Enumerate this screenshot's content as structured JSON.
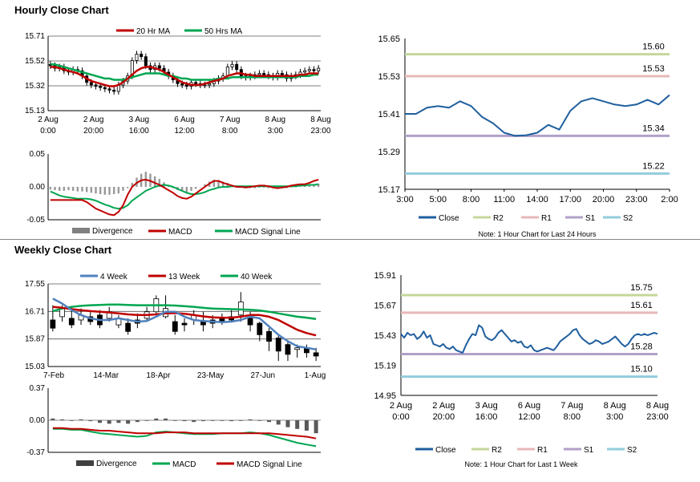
{
  "hourly": {
    "title": "Hourly Close Chart",
    "note": "Note: 1 Hour Chart for Last 24 Hours"
  },
  "weekly": {
    "title": "Weekly Close Chart",
    "note": "Note: 1 Hour Chart for Last 1 Week"
  },
  "colors": {
    "red": "#c00000",
    "green": "#00a651",
    "blue": "#4f81bd",
    "close": "#1f5f9f",
    "r2": "#c4d79b",
    "r1": "#e6b8b7",
    "s1": "#b1a0c7",
    "s2": "#92cddc",
    "gray": "#808080",
    "dark": "#404040"
  },
  "chart_data": [
    {
      "id": "hourly_price",
      "type": "candlestick",
      "legend": [
        "20 Hr MA",
        "50 Hrs MA"
      ],
      "ylim": [
        15.13,
        15.71
      ],
      "yticks": [
        "15.71",
        "15.52",
        "15.32",
        "15.13"
      ],
      "xticks": [
        [
          "2 Aug",
          "0:00"
        ],
        [
          "2 Aug",
          "20:00"
        ],
        [
          "3 Aug",
          "16:00"
        ],
        [
          "6 Aug",
          "12:00"
        ],
        [
          "7 Aug",
          "8:00"
        ],
        [
          "8 Aug",
          "3:00"
        ],
        [
          "8 Aug",
          "23:00"
        ]
      ],
      "closes": [
        15.48,
        15.46,
        15.47,
        15.44,
        15.43,
        15.45,
        15.44,
        15.4,
        15.35,
        15.33,
        15.32,
        15.31,
        15.3,
        15.29,
        15.28,
        15.33,
        15.36,
        15.4,
        15.52,
        15.57,
        15.55,
        15.48,
        15.45,
        15.48,
        15.46,
        15.43,
        15.4,
        15.37,
        15.34,
        15.33,
        15.32,
        15.35,
        15.34,
        15.33,
        15.33,
        15.34,
        15.36,
        15.38,
        15.4,
        15.47,
        15.49,
        15.45,
        15.4,
        15.39,
        15.4,
        15.41,
        15.42,
        15.41,
        15.4,
        15.39,
        15.42,
        15.41,
        15.38,
        15.4,
        15.41,
        15.43,
        15.44,
        15.45,
        15.44,
        15.46
      ],
      "ma20": [
        15.47,
        15.47,
        15.46,
        15.45,
        15.44,
        15.43,
        15.42,
        15.4,
        15.38,
        15.36,
        15.35,
        15.34,
        15.33,
        15.32,
        15.32,
        15.33,
        15.35,
        15.38,
        15.41,
        15.44,
        15.46,
        15.47,
        15.47,
        15.46,
        15.45,
        15.43,
        15.41,
        15.39,
        15.37,
        15.35,
        15.34,
        15.33,
        15.33,
        15.33,
        15.34,
        15.35,
        15.36,
        15.37,
        15.38,
        15.4,
        15.41,
        15.42,
        15.42,
        15.41,
        15.41,
        15.4,
        15.4,
        15.4,
        15.4,
        15.4,
        15.4,
        15.4,
        15.4,
        15.4,
        15.4,
        15.41,
        15.41,
        15.42,
        15.42,
        15.42
      ],
      "ma50": [
        15.49,
        15.49,
        15.48,
        15.47,
        15.46,
        15.45,
        15.44,
        15.43,
        15.42,
        15.41,
        15.4,
        15.39,
        15.38,
        15.38,
        15.37,
        15.37,
        15.37,
        15.38,
        15.39,
        15.4,
        15.41,
        15.42,
        15.42,
        15.42,
        15.42,
        15.41,
        15.4,
        15.4,
        15.39,
        15.38,
        15.38,
        15.37,
        15.37,
        15.37,
        15.37,
        15.37,
        15.37,
        15.38,
        15.38,
        15.38,
        15.39,
        15.39,
        15.39,
        15.39,
        15.39,
        15.39,
        15.39,
        15.39,
        15.39,
        15.39,
        15.39,
        15.39,
        15.39,
        15.39,
        15.39,
        15.4,
        15.4,
        15.4,
        15.41,
        15.41
      ]
    },
    {
      "id": "hourly_macd",
      "type": "bar+line",
      "legend": [
        "Divergence",
        "MACD",
        "MACD Signal Line"
      ],
      "ylim": [
        -0.05,
        0.05
      ],
      "yticks": [
        "0.05",
        "0.00",
        "-0.05"
      ],
      "macd": [
        -0.02,
        -0.02,
        -0.02,
        -0.02,
        -0.02,
        -0.02,
        -0.02,
        -0.02,
        -0.023,
        -0.028,
        -0.033,
        -0.036,
        -0.039,
        -0.042,
        -0.043,
        -0.038,
        -0.028,
        -0.012,
        0.0,
        0.006,
        0.01,
        0.011,
        0.009,
        0.006,
        0.003,
        -0.001,
        -0.005,
        -0.009,
        -0.014,
        -0.017,
        -0.018,
        -0.015,
        -0.01,
        -0.005,
        0.0,
        0.005,
        0.009,
        0.009,
        0.006,
        0.004,
        0.002,
        0.0,
        0.0,
        -0.001,
        0.0,
        0.001,
        0.002,
        0.002,
        0.001,
        -0.001,
        -0.002,
        -0.001,
        0.0,
        0.002,
        0.003,
        0.004,
        0.004,
        0.006,
        0.009,
        0.011
      ],
      "signal": [
        -0.007,
        -0.01,
        -0.013,
        -0.015,
        -0.016,
        -0.017,
        -0.018,
        -0.018,
        -0.018,
        -0.019,
        -0.021,
        -0.024,
        -0.027,
        -0.029,
        -0.032,
        -0.033,
        -0.032,
        -0.028,
        -0.021,
        -0.016,
        -0.011,
        -0.006,
        -0.003,
        0.0,
        0.002,
        0.003,
        0.002,
        0.0,
        -0.003,
        -0.006,
        -0.009,
        -0.011,
        -0.011,
        -0.01,
        -0.008,
        -0.005,
        -0.003,
        -0.001,
        0.0,
        0.0,
        0.001,
        0.001,
        0.001,
        0.001,
        0.001,
        0.001,
        0.001,
        0.001,
        0.001,
        0.001,
        0.001,
        0.001,
        0.001,
        0.001,
        0.001,
        0.002,
        0.002,
        0.003,
        0.003,
        0.004
      ],
      "divergence": [
        -0.004,
        -0.005,
        -0.006,
        -0.006,
        -0.005,
        -0.006,
        -0.007,
        -0.007,
        -0.008,
        -0.009,
        -0.01,
        -0.011,
        -0.012,
        -0.012,
        -0.011,
        -0.01,
        -0.006,
        -0.002,
        0.006,
        0.014,
        0.02,
        0.023,
        0.02,
        0.016,
        0.012,
        0.007,
        0.003,
        -0.002,
        -0.005,
        -0.007,
        -0.008,
        -0.006,
        -0.003,
        0.0,
        0.004,
        0.008,
        0.011,
        0.01,
        0.008,
        0.006,
        0.003,
        0.001,
        0.0,
        -0.002,
        -0.002,
        -0.002,
        -0.001,
        -0.001,
        -0.002,
        -0.002,
        -0.003,
        -0.002,
        -0.002,
        -0.001,
        0.0,
        0.001,
        0.002,
        0.003,
        0.004,
        0.005
      ]
    },
    {
      "id": "hourly_close_24h",
      "type": "line",
      "ylim": [
        15.17,
        15.65
      ],
      "yticks": [
        "15.65",
        "15.53",
        "15.41",
        "15.29",
        "15.17"
      ],
      "xticks": [
        "3:00",
        "5:00",
        "8:00",
        "11:00",
        "14:00",
        "17:00",
        "20:00",
        "23:00",
        "2:00"
      ],
      "close": [
        15.41,
        15.41,
        15.43,
        15.435,
        15.43,
        15.45,
        15.435,
        15.4,
        15.38,
        15.35,
        15.34,
        15.342,
        15.35,
        15.375,
        15.36,
        15.42,
        15.45,
        15.46,
        15.45,
        15.44,
        15.435,
        15.44,
        15.455,
        15.44,
        15.47
      ],
      "levels": [
        {
          "name": "R2",
          "value": 15.6,
          "label": "15.60"
        },
        {
          "name": "R1",
          "value": 15.53,
          "label": "15.53"
        },
        {
          "name": "S1",
          "value": 15.34,
          "label": "15.34"
        },
        {
          "name": "S2",
          "value": 15.22,
          "label": "15.22"
        }
      ],
      "legend": [
        "Close",
        "R2",
        "R1",
        "S1",
        "S2"
      ]
    },
    {
      "id": "weekly_price",
      "type": "candlestick",
      "legend": [
        "4 Week",
        "13 Week",
        "40 Week"
      ],
      "ylim": [
        15.03,
        17.55
      ],
      "yticks": [
        "17.55",
        "16.71",
        "15.87",
        "15.03"
      ],
      "xticks": [
        "7-Feb",
        "14-Mar",
        "18-Apr",
        "23-May",
        "27-Jun",
        "1-Aug"
      ],
      "opens": [
        16.45,
        16.55,
        16.5,
        16.45,
        16.55,
        16.6,
        16.5,
        16.3,
        16.35,
        16.45,
        16.5,
        16.7,
        16.55,
        16.4,
        16.35,
        16.45,
        16.4,
        16.45,
        16.5,
        16.55,
        16.6,
        16.5,
        16.35,
        16.1,
        15.9,
        15.7,
        15.55,
        15.6,
        15.45
      ],
      "closes": [
        16.2,
        16.8,
        16.3,
        16.6,
        16.4,
        16.3,
        16.7,
        16.5,
        16.1,
        16.35,
        16.7,
        17.1,
        16.8,
        16.1,
        16.3,
        16.6,
        16.3,
        16.35,
        16.4,
        16.45,
        17.0,
        16.3,
        16.0,
        15.8,
        15.5,
        15.4,
        15.6,
        15.45,
        15.35
      ],
      "highs": [
        16.9,
        16.9,
        16.85,
        16.8,
        16.7,
        16.75,
        16.85,
        16.6,
        16.5,
        16.65,
        16.85,
        17.2,
        17.2,
        16.6,
        16.5,
        16.75,
        16.7,
        16.6,
        16.65,
        16.75,
        17.3,
        16.7,
        16.4,
        16.2,
        16.0,
        15.8,
        15.7,
        15.7,
        15.6
      ],
      "lows": [
        16.1,
        16.4,
        16.2,
        16.3,
        16.3,
        16.2,
        16.4,
        16.2,
        16.0,
        16.2,
        16.4,
        16.6,
        16.5,
        16.0,
        16.1,
        16.3,
        16.1,
        16.2,
        16.3,
        16.4,
        16.4,
        16.1,
        15.8,
        15.5,
        15.2,
        15.2,
        15.3,
        15.3,
        15.2
      ],
      "ma4": [
        17.1,
        16.95,
        16.75,
        16.6,
        16.5,
        16.45,
        16.45,
        16.5,
        16.45,
        16.4,
        16.42,
        16.55,
        16.7,
        16.7,
        16.55,
        16.45,
        16.42,
        16.4,
        16.38,
        16.4,
        16.45,
        16.55,
        16.5,
        16.25,
        16.0,
        15.8,
        15.65,
        15.6,
        15.55
      ],
      "ma13": [
        16.85,
        16.82,
        16.78,
        16.75,
        16.72,
        16.7,
        16.68,
        16.65,
        16.62,
        16.6,
        16.6,
        16.62,
        16.65,
        16.66,
        16.64,
        16.6,
        16.56,
        16.53,
        16.52,
        16.52,
        16.55,
        16.6,
        16.6,
        16.55,
        16.45,
        16.3,
        16.15,
        16.05,
        15.98
      ],
      "ma40": [
        16.72,
        16.8,
        16.85,
        16.88,
        16.9,
        16.91,
        16.92,
        16.92,
        16.91,
        16.9,
        16.9,
        16.9,
        16.9,
        16.89,
        16.87,
        16.85,
        16.82,
        16.8,
        16.79,
        16.78,
        16.77,
        16.76,
        16.74,
        16.7,
        16.65,
        16.6,
        16.55,
        16.52,
        16.48
      ]
    },
    {
      "id": "weekly_macd",
      "type": "bar+line",
      "legend": [
        "Divergence",
        "MACD",
        "MACD Signal Line"
      ],
      "ylim": [
        -0.37,
        0.37
      ],
      "yticks": [
        "0.37",
        "0.00",
        "-0.37"
      ],
      "divergence": [
        0.02,
        0.01,
        0.0,
        0.01,
        -0.01,
        -0.03,
        -0.04,
        -0.03,
        -0.04,
        -0.02,
        0.0,
        0.02,
        0.02,
        0.0,
        -0.01,
        -0.02,
        -0.01,
        0.0,
        0.0,
        -0.01,
        0.0,
        0.01,
        0.0,
        -0.02,
        -0.05,
        -0.08,
        -0.1,
        -0.12,
        -0.15
      ],
      "macd": [
        -0.1,
        -0.1,
        -0.11,
        -0.11,
        -0.13,
        -0.15,
        -0.16,
        -0.17,
        -0.18,
        -0.19,
        -0.18,
        -0.14,
        -0.13,
        -0.14,
        -0.15,
        -0.16,
        -0.16,
        -0.16,
        -0.15,
        -0.15,
        -0.15,
        -0.14,
        -0.15,
        -0.17,
        -0.2,
        -0.23,
        -0.26,
        -0.28,
        -0.3
      ],
      "signal": [
        -0.09,
        -0.09,
        -0.1,
        -0.1,
        -0.11,
        -0.12,
        -0.12,
        -0.13,
        -0.14,
        -0.15,
        -0.15,
        -0.15,
        -0.14,
        -0.14,
        -0.14,
        -0.15,
        -0.15,
        -0.15,
        -0.15,
        -0.15,
        -0.15,
        -0.15,
        -0.15,
        -0.15,
        -0.16,
        -0.17,
        -0.18,
        -0.19,
        -0.21
      ]
    },
    {
      "id": "weekly_close_1w",
      "type": "line",
      "ylim": [
        14.95,
        15.91
      ],
      "yticks": [
        "15.91",
        "15.67",
        "15.43",
        "15.19",
        "14.95"
      ],
      "xticks": [
        [
          "2 Aug",
          "0:00"
        ],
        [
          "2 Aug",
          "20:00"
        ],
        [
          "3 Aug",
          "16:00"
        ],
        [
          "6 Aug",
          "12:00"
        ],
        [
          "7 Aug",
          "8:00"
        ],
        [
          "8 Aug",
          "3:00"
        ],
        [
          "8 Aug",
          "23:00"
        ]
      ],
      "close": [
        15.44,
        15.41,
        15.45,
        15.43,
        15.44,
        15.4,
        15.42,
        15.46,
        15.41,
        15.43,
        15.36,
        15.35,
        15.34,
        15.36,
        15.33,
        15.32,
        15.34,
        15.31,
        15.3,
        15.29,
        15.35,
        15.4,
        15.44,
        15.43,
        15.51,
        15.49,
        15.42,
        15.4,
        15.39,
        15.41,
        15.45,
        15.47,
        15.44,
        15.41,
        15.38,
        15.39,
        15.37,
        15.38,
        15.34,
        15.33,
        15.35,
        15.31,
        15.3,
        15.31,
        15.32,
        15.33,
        15.32,
        15.31,
        15.34,
        15.38,
        15.4,
        15.42,
        15.44,
        15.47,
        15.48,
        15.43,
        15.4,
        15.38,
        15.36,
        15.37,
        15.39,
        15.38,
        15.36,
        15.37,
        15.38,
        15.4,
        15.42,
        15.39,
        15.36,
        15.34,
        15.36,
        15.4,
        15.43,
        15.44,
        15.43,
        15.44,
        15.43,
        15.44,
        15.45,
        15.44
      ],
      "levels": [
        {
          "name": "R2",
          "value": 15.75,
          "label": "15.75"
        },
        {
          "name": "R1",
          "value": 15.61,
          "label": "15.61"
        },
        {
          "name": "S1",
          "value": 15.28,
          "label": "15.28"
        },
        {
          "name": "S2",
          "value": 15.1,
          "label": "15.10"
        }
      ],
      "legend": [
        "Close",
        "R2",
        "R1",
        "S1",
        "S2"
      ]
    }
  ]
}
